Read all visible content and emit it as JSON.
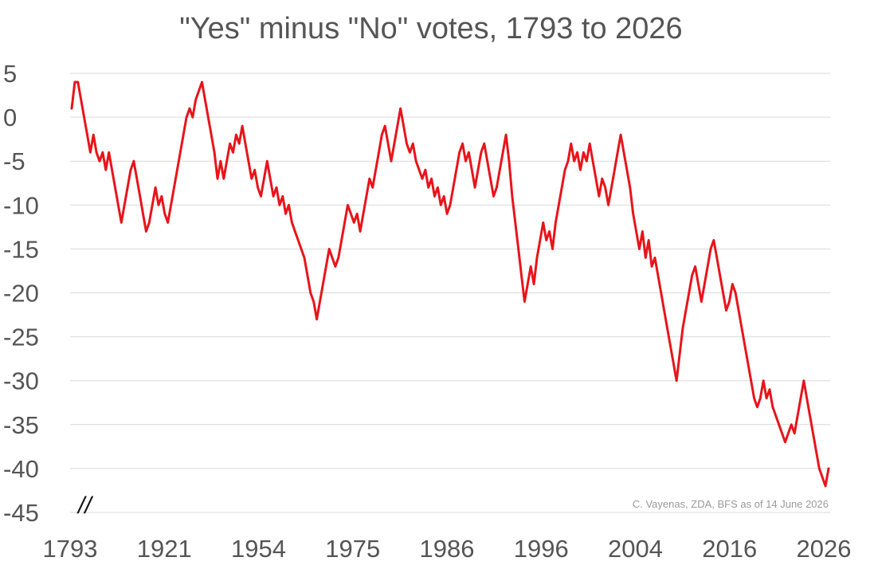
{
  "chart_data": {
    "type": "line",
    "title": "\"Yes\" minus \"No\" votes, 1793 to 2026",
    "xlabel": "",
    "ylabel": "",
    "ylim": [
      -45,
      5
    ],
    "y_ticks": [
      "5",
      "0",
      "-5",
      "-10",
      "-15",
      "-20",
      "-25",
      "-30",
      "-35",
      "-40",
      "-45"
    ],
    "y_tick_values": [
      5,
      0,
      -5,
      -10,
      -15,
      -20,
      -25,
      -30,
      -35,
      -40,
      -45
    ],
    "x_ticks": [
      "1793",
      "1921",
      "1954",
      "1975",
      "1986",
      "1996",
      "2004",
      "2016",
      "2026"
    ],
    "grid": true,
    "axis_break_mark": "//",
    "source_note": "C. Vayenas, ZDA, BFS as of 14 June 2026",
    "series_color": "#e8141b",
    "series": [
      {
        "values": [
          1,
          4,
          4,
          2,
          0,
          -2,
          -4,
          -2,
          -4,
          -5,
          -4,
          -6,
          -4,
          -6,
          -8,
          -10,
          -12,
          -10,
          -8,
          -6,
          -5,
          -7,
          -9,
          -11,
          -13,
          -12,
          -10,
          -8,
          -10,
          -9,
          -11,
          -12,
          -10,
          -8,
          -6,
          -4,
          -2,
          0,
          1,
          0,
          2,
          3,
          4,
          2,
          0,
          -2,
          -4,
          -7,
          -5,
          -7,
          -5,
          -3,
          -4,
          -2,
          -3,
          -1,
          -3,
          -5,
          -7,
          -6,
          -8,
          -9,
          -7,
          -5,
          -7,
          -9,
          -8,
          -10,
          -9,
          -11,
          -10,
          -12,
          -13,
          -14,
          -15,
          -16,
          -18,
          -20,
          -21,
          -23,
          -21,
          -19,
          -17,
          -15,
          -16,
          -17,
          -16,
          -14,
          -12,
          -10,
          -11,
          -12,
          -11,
          -13,
          -11,
          -9,
          -7,
          -8,
          -6,
          -4,
          -2,
          -1,
          -3,
          -5,
          -3,
          -1,
          1,
          -1,
          -3,
          -4,
          -3,
          -5,
          -6,
          -7,
          -6,
          -8,
          -7,
          -9,
          -8,
          -10,
          -9,
          -11,
          -10,
          -8,
          -6,
          -4,
          -3,
          -5,
          -4,
          -6,
          -8,
          -6,
          -4,
          -3,
          -5,
          -7,
          -9,
          -8,
          -6,
          -4,
          -2,
          -5,
          -9,
          -12,
          -15,
          -18,
          -21,
          -19,
          -17,
          -19,
          -16,
          -14,
          -12,
          -14,
          -13,
          -15,
          -12,
          -10,
          -8,
          -6,
          -5,
          -3,
          -5,
          -4,
          -6,
          -4,
          -5,
          -3,
          -5,
          -7,
          -9,
          -7,
          -8,
          -10,
          -8,
          -6,
          -4,
          -2,
          -4,
          -6,
          -8,
          -11,
          -13,
          -15,
          -13,
          -16,
          -14,
          -17,
          -16,
          -18,
          -20,
          -22,
          -24,
          -26,
          -28,
          -30,
          -27,
          -24,
          -22,
          -20,
          -18,
          -17,
          -19,
          -21,
          -19,
          -17,
          -15,
          -14,
          -16,
          -18,
          -20,
          -22,
          -21,
          -19,
          -20,
          -22,
          -24,
          -26,
          -28,
          -30,
          -32,
          -33,
          -32,
          -30,
          -32,
          -31,
          -33,
          -34,
          -35,
          -36,
          -37,
          -36,
          -35,
          -36,
          -34,
          -32,
          -30,
          -32,
          -34,
          -36,
          -38,
          -40,
          -41,
          -42,
          -40
        ]
      }
    ]
  }
}
